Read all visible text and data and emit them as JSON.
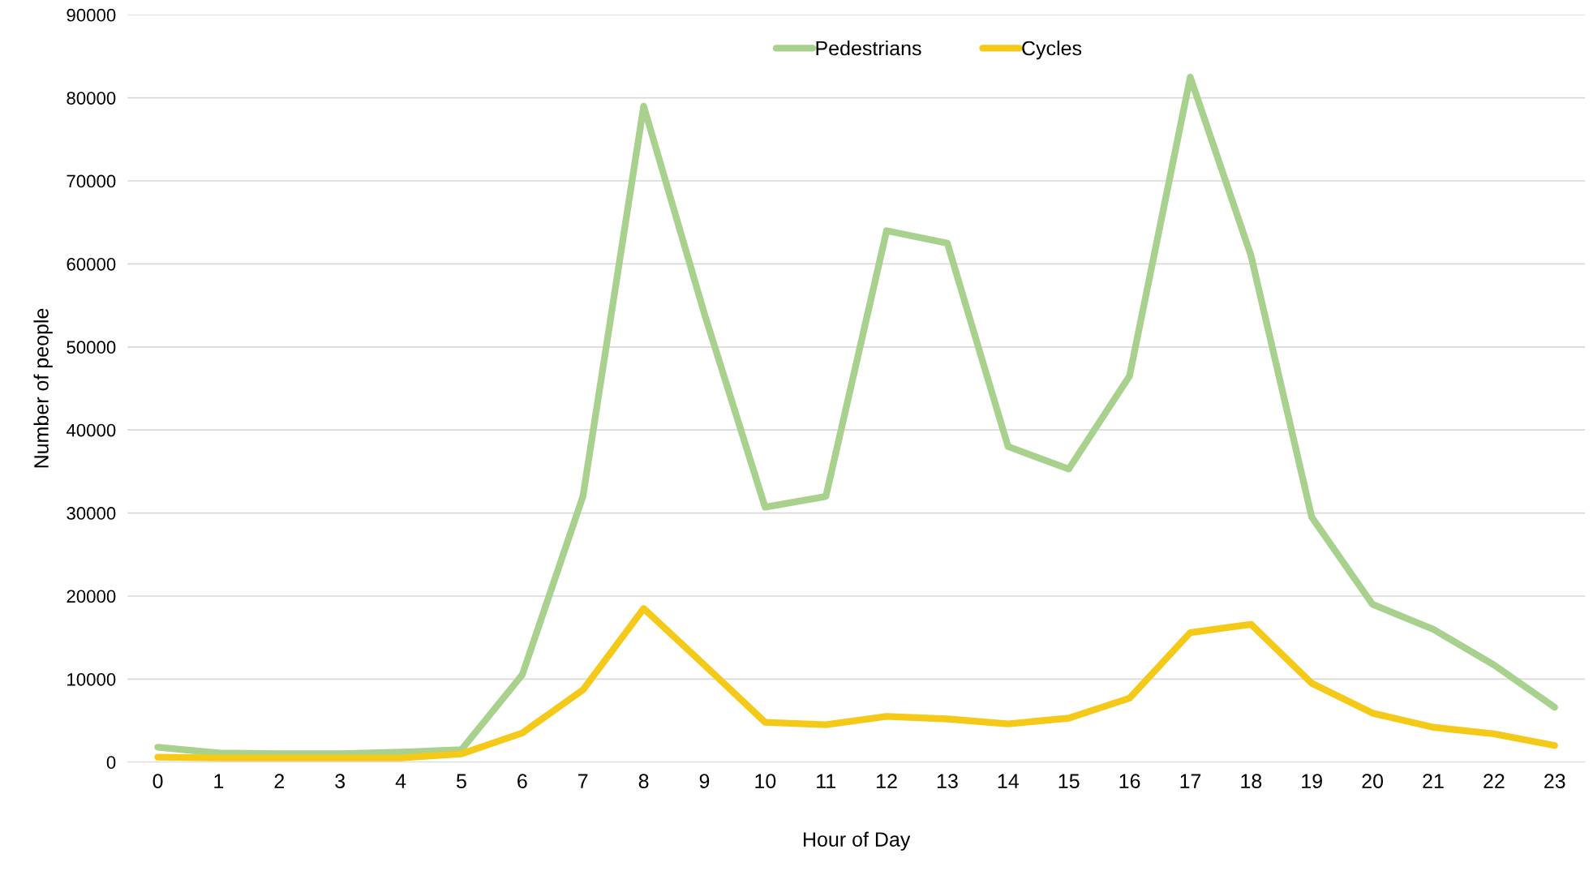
{
  "chart_data": {
    "type": "line",
    "xlabel": "Hour of Day",
    "ylabel": "Number of people",
    "categories": [
      "0",
      "1",
      "2",
      "3",
      "4",
      "5",
      "6",
      "7",
      "8",
      "9",
      "10",
      "11",
      "12",
      "13",
      "14",
      "15",
      "16",
      "17",
      "18",
      "19",
      "20",
      "21",
      "22",
      "23"
    ],
    "series": [
      {
        "name": "Pedestrians",
        "color": "#a9d18e",
        "values": [
          1800,
          1100,
          1000,
          1000,
          1200,
          1500,
          10500,
          32000,
          79000,
          54000,
          30700,
          32000,
          64000,
          62500,
          38000,
          35300,
          46500,
          82500,
          61000,
          29500,
          19000,
          16000,
          11700,
          6600
        ]
      },
      {
        "name": "Cycles",
        "color": "#f5c918",
        "values": [
          600,
          500,
          500,
          500,
          500,
          1000,
          3500,
          8700,
          18500,
          11700,
          4800,
          4500,
          5500,
          5200,
          4600,
          5300,
          7700,
          15600,
          16600,
          9500,
          5900,
          4200,
          3400,
          2000
        ]
      }
    ],
    "ylim": [
      0,
      90000
    ],
    "yticks": [
      0,
      10000,
      20000,
      30000,
      40000,
      50000,
      60000,
      70000,
      80000,
      90000
    ],
    "grid": "y",
    "legend": "top",
    "marker": "none",
    "line_style": "solid"
  }
}
